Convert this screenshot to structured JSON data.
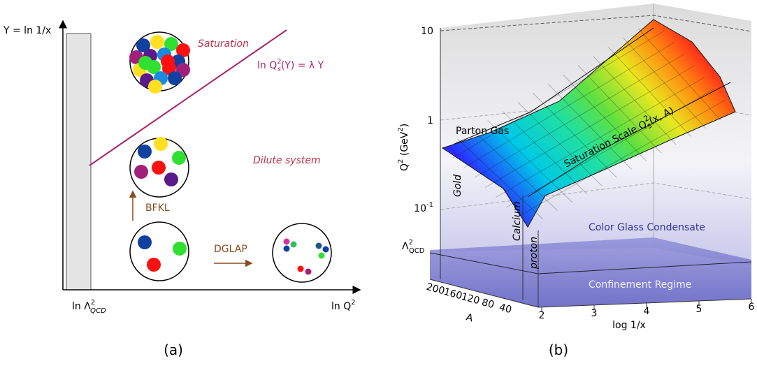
{
  "panel_a": {
    "y_axis_label": "Y = ln 1/x",
    "x_tick_label": {
      "main": "ln Λ",
      "sup": "2",
      "sub": "QCD"
    },
    "x_axis_label": {
      "main": "ln Q",
      "sup": "2"
    },
    "saturation": "Saturation",
    "saturation_line_label": {
      "pre": "ln Q",
      "sup": "2",
      "sub": "s",
      "post": "(Y) = λ Y"
    },
    "dilute": "Dilute system",
    "bfkl": "BFKL",
    "dglap": "DGLAP",
    "caption": "(a)"
  },
  "panel_b": {
    "y_axis_label": {
      "main": "Q",
      "sup": "2",
      "post": " (GeV",
      "sup2": "2",
      "end": ")"
    },
    "y_ticks": {
      "ten": "10",
      "one": "1",
      "tenth": {
        "base": "10",
        "exp": "-1"
      },
      "lambda": {
        "main": "Λ",
        "sup": "2",
        "sub": "QCD"
      }
    },
    "parton_gas": "Parton Gas",
    "saturation_scale": {
      "pre": "Saturation Scale Q",
      "sup": "2",
      "sub": "s",
      "post": "(x, A)"
    },
    "gold": "Gold",
    "calcium": "Calcium",
    "proton": "proton",
    "cgc": "Color Glass Condensate",
    "confinement": "Confinement Regime",
    "a_ticks": [
      "200",
      "160",
      "120",
      "80",
      "40"
    ],
    "a_label": "A",
    "x_ticks": [
      "2",
      "3",
      "4",
      "5",
      "6"
    ],
    "x_label": "log 1/x",
    "caption": "(b)"
  }
}
